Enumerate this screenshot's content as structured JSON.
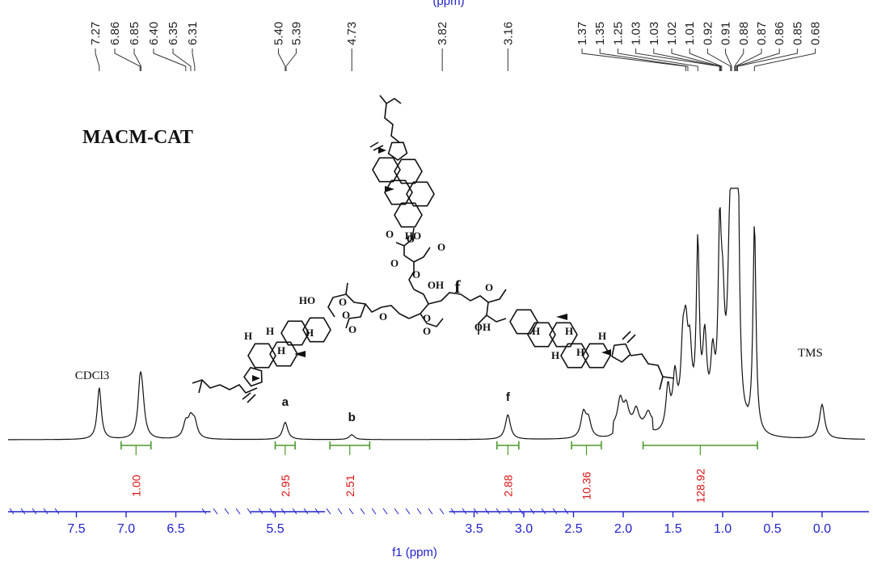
{
  "chart_data": {
    "type": "line",
    "title": "",
    "compound_label": "MACM-CAT",
    "xlabel": "f1 (ppm)",
    "axis_top_fragment": "(ppm)",
    "xlim": [
      7.9,
      -0.4
    ],
    "x_reversed": true,
    "xticks": [
      7.5,
      7.0,
      6.5,
      5.5,
      3.5,
      3.0,
      2.5,
      2.0,
      1.5,
      1.0,
      0.5,
      0.0
    ],
    "xtick_labels": [
      "7.5",
      "7.0",
      "6.5",
      "5.5",
      "3.5",
      "3.0",
      "2.5",
      "2.0",
      "1.5",
      "1.0",
      "0.5",
      "0.0"
    ],
    "axis_breaks": [
      [
        6.15,
        5.75
      ],
      [
        5.0,
        3.75
      ]
    ],
    "peak_labels": [
      "7.27",
      "6.86",
      "6.85",
      "6.40",
      "6.35",
      "6.31",
      "5.40",
      "5.39",
      "4.73",
      "3.82",
      "3.16",
      "1.37",
      "1.35",
      "1.25",
      "1.03",
      "1.03",
      "1.02",
      "1.01",
      "0.92",
      "0.91",
      "0.88",
      "0.87",
      "0.86",
      "0.85",
      "0.68"
    ],
    "peaks": [
      {
        "ppm": 7.27,
        "height": 0.21
      },
      {
        "ppm": 6.86,
        "height": 0.16
      },
      {
        "ppm": 6.84,
        "height": 0.15
      },
      {
        "ppm": 6.4,
        "height": 0.06
      },
      {
        "ppm": 6.35,
        "height": 0.07
      },
      {
        "ppm": 6.31,
        "height": 0.06
      },
      {
        "ppm": 5.4,
        "height": 0.07
      },
      {
        "ppm": 4.73,
        "height": 0.02
      },
      {
        "ppm": 3.16,
        "height": 0.1
      },
      {
        "ppm": 2.4,
        "height": 0.1
      },
      {
        "ppm": 2.35,
        "height": 0.07
      },
      {
        "ppm": 2.03,
        "height": 0.11
      },
      {
        "ppm": 1.97,
        "height": 0.08
      },
      {
        "ppm": 1.87,
        "height": 0.07
      },
      {
        "ppm": 1.75,
        "height": 0.05
      },
      {
        "ppm": 1.55,
        "height": 0.17
      },
      {
        "ppm": 1.48,
        "height": 0.2
      },
      {
        "ppm": 1.4,
        "height": 0.27
      },
      {
        "ppm": 1.37,
        "height": 0.29
      },
      {
        "ppm": 1.33,
        "height": 0.25
      },
      {
        "ppm": 1.25,
        "height": 0.7
      },
      {
        "ppm": 1.18,
        "height": 0.32
      },
      {
        "ppm": 1.1,
        "height": 0.24
      },
      {
        "ppm": 1.03,
        "height": 0.66
      },
      {
        "ppm": 1.0,
        "height": 0.4
      },
      {
        "ppm": 0.93,
        "height": 0.48
      },
      {
        "ppm": 0.91,
        "height": 0.45
      },
      {
        "ppm": 0.87,
        "height": 1.0
      },
      {
        "ppm": 0.85,
        "height": 0.96
      },
      {
        "ppm": 0.68,
        "height": 0.85
      },
      {
        "ppm": 0.0,
        "height": 0.14
      }
    ],
    "integrals": [
      {
        "from": 7.05,
        "to": 6.75,
        "value": "1.00"
      },
      {
        "from": 5.5,
        "to": 5.3,
        "value": "2.95"
      },
      {
        "from": 4.95,
        "to": 4.55,
        "value": "2.51"
      },
      {
        "from": 3.27,
        "to": 3.05,
        "value": "2.88"
      },
      {
        "from": 2.52,
        "to": 2.22,
        "value": "10.36"
      },
      {
        "from": 1.8,
        "to": 0.65,
        "value": "128.92"
      }
    ],
    "annotations": [
      {
        "text": "CDCl3",
        "ppm": 7.27,
        "kind": "solvent"
      },
      {
        "text": "TMS",
        "ppm": 0.0,
        "kind": "solvent"
      },
      {
        "text": "a",
        "ppm": 5.4,
        "kind": "peak"
      },
      {
        "text": "b",
        "ppm": 4.73,
        "kind": "peak"
      },
      {
        "text": "f",
        "ppm": 3.16,
        "kind": "peak"
      }
    ],
    "structure_atom_labels": [
      "O",
      "O",
      "HO",
      "O",
      "O",
      "O",
      "OH",
      "f",
      "O",
      "HO",
      "O",
      "O",
      "O",
      "O",
      "O",
      "O",
      "OH",
      "H",
      "H",
      "H",
      "H",
      "H",
      "H",
      "H",
      "H",
      "H"
    ]
  }
}
